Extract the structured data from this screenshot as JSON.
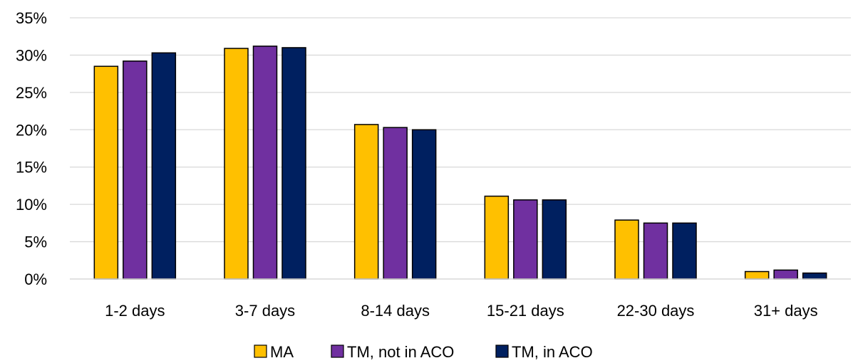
{
  "chart_data": {
    "type": "bar",
    "categories": [
      "1-2 days",
      "3-7 days",
      "8-14 days",
      "15-21 days",
      "22-30 days",
      "31+ days"
    ],
    "series": [
      {
        "name": "MA",
        "color": "#FFC000",
        "values": [
          28.5,
          30.9,
          20.7,
          11.1,
          7.9,
          1.0
        ]
      },
      {
        "name": "TM, not in ACO",
        "color": "#7030A0",
        "values": [
          29.2,
          31.2,
          20.3,
          10.6,
          7.5,
          1.2
        ]
      },
      {
        "name": "TM, in ACO",
        "color": "#002060",
        "values": [
          30.3,
          31.0,
          20.0,
          10.6,
          7.5,
          0.8
        ]
      }
    ],
    "y_ticks": [
      "0%",
      "5%",
      "10%",
      "15%",
      "20%",
      "25%",
      "30%",
      "35%"
    ],
    "ylim": [
      0,
      35
    ],
    "grid": true,
    "legend_position": "bottom"
  }
}
